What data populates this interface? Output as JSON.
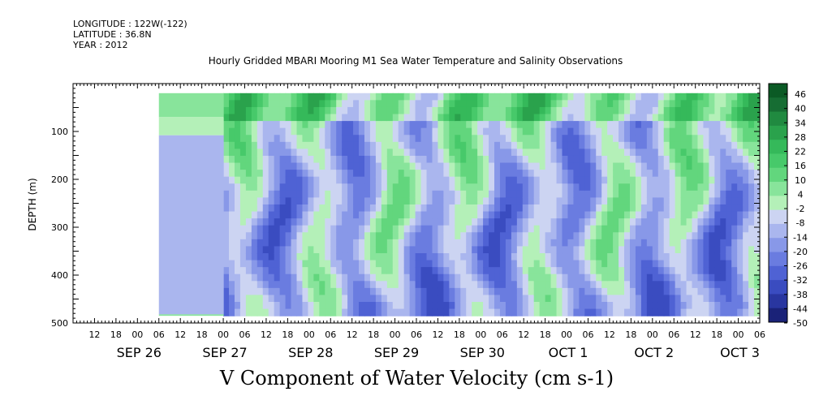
{
  "header": {
    "longitude": "LONGITUDE : 122W(-122)",
    "latitude": "LATITUDE : 36.8N",
    "year": "YEAR : 2012"
  },
  "title": "Hourly Gridded MBARI Mooring M1 Sea Water Temperature and Salinity Observations",
  "caption": "V Component of Water Velocity (cm s-1)",
  "chart_data": {
    "type": "heatmap",
    "ylabel": "DEPTH (m)",
    "yticks": [
      100,
      200,
      300,
      400,
      500
    ],
    "ylim": [
      500,
      0
    ],
    "hour_ticks": [
      "12",
      "18",
      "00",
      "06",
      "12",
      "18",
      "00",
      "06",
      "12",
      "18",
      "00",
      "06",
      "12",
      "18",
      "00",
      "06",
      "12",
      "18",
      "00",
      "06",
      "12",
      "18",
      "00",
      "06",
      "12",
      "18",
      "00",
      "06",
      "12",
      "18",
      "00",
      "06"
    ],
    "date_labels": [
      "SEP 26",
      "SEP 27",
      "SEP 28",
      "SEP 29",
      "SEP 30",
      "OCT  1",
      "OCT  2",
      "OCT  3"
    ],
    "colorbar": {
      "labels": [
        "46",
        "40",
        "34",
        "28",
        "22",
        "16",
        "10",
        "4",
        "-2",
        "-8",
        "-14",
        "-20",
        "-26",
        "-32",
        "-38",
        "-44",
        "-50"
      ],
      "colors_high_to_low": [
        "#0b5a25",
        "#166d33",
        "#208a40",
        "#2aa24c",
        "#35b95a",
        "#47c96a",
        "#62d67d",
        "#88e49b",
        "#b4f0b8",
        "#ccd4f2",
        "#aab6ee",
        "#8898e8",
        "#6a7ce0",
        "#4f62d4",
        "#3a4cc0",
        "#2936a0",
        "#1a2278"
      ],
      "range": [
        -50,
        48
      ]
    },
    "data_extent_hours": {
      "start": 42,
      "end": 192
    }
  }
}
